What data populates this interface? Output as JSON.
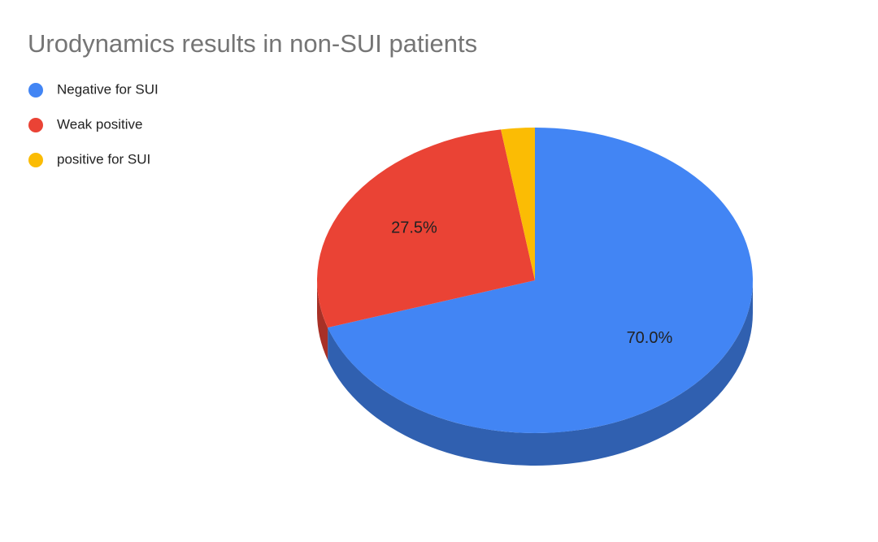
{
  "chart_data": {
    "type": "pie",
    "title": "Urodynamics results in non-SUI patients",
    "categories": [
      "Negative for SUI",
      "Weak positive",
      "positive for SUI"
    ],
    "values": [
      70.0,
      27.5,
      2.5
    ],
    "value_labels": [
      "70.0%",
      "27.5%",
      null
    ],
    "colors": [
      "#4285f4",
      "#ea4335",
      "#fbbc04"
    ],
    "legend": "top-left"
  }
}
